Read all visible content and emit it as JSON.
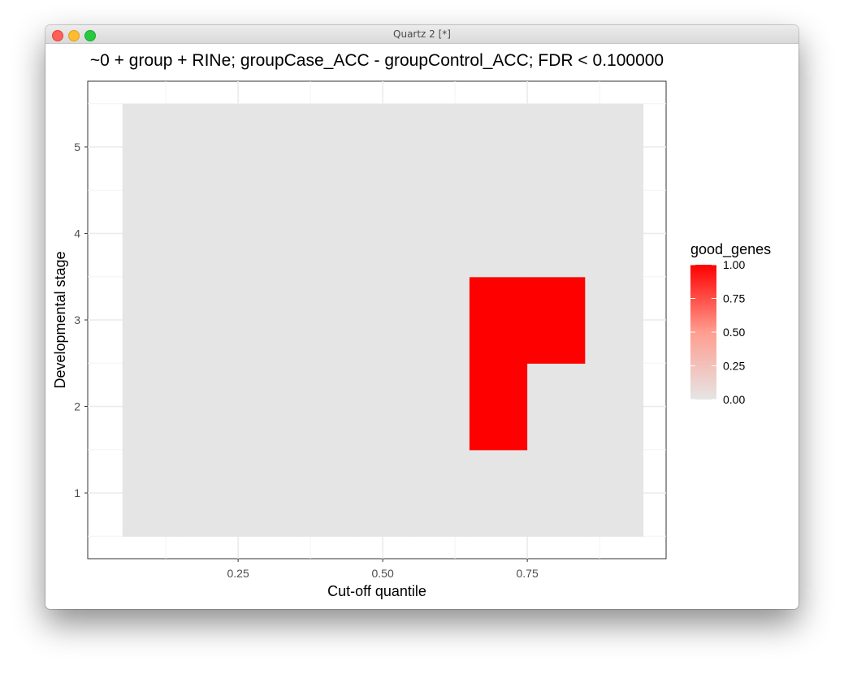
{
  "window": {
    "title": "Quartz 2 [*]"
  },
  "chart_data": {
    "type": "heatmap",
    "title": "~0 + group + RINe; groupCase_ACC - groupControl_ACC; FDR < 0.100000",
    "xlabel": "Cut-off quantile",
    "ylabel": "Developmental stage",
    "x_ticks": [
      "0.25",
      "0.50",
      "0.75"
    ],
    "x_tick_values": [
      0.25,
      0.5,
      0.75
    ],
    "y_ticks": [
      "1",
      "2",
      "3",
      "4",
      "5"
    ],
    "y_tick_values": [
      1,
      2,
      3,
      4,
      5
    ],
    "xlim": [
      0.0,
      1.0
    ],
    "ylim": [
      0.5,
      5.5
    ],
    "x": [
      0.1,
      0.2,
      0.3,
      0.4,
      0.5,
      0.6,
      0.7,
      0.8,
      0.9
    ],
    "y": [
      1,
      2,
      3,
      4,
      5
    ],
    "values": [
      [
        0,
        0,
        0,
        0,
        0,
        0,
        0,
        0,
        0
      ],
      [
        0,
        0,
        0,
        0,
        0,
        0,
        1,
        0,
        0
      ],
      [
        0,
        0,
        0,
        0,
        0,
        0,
        1,
        1,
        0
      ],
      [
        0,
        0,
        0,
        0,
        0,
        0,
        0,
        0,
        0
      ],
      [
        0,
        0,
        0,
        0,
        0,
        0,
        0,
        0,
        0
      ]
    ],
    "legend": {
      "title": "good_genes",
      "position": "right",
      "labels": [
        "1.00",
        "0.75",
        "0.50",
        "0.25",
        "0.00"
      ],
      "values": [
        1.0,
        0.75,
        0.5,
        0.25,
        0.0
      ],
      "low_color": "#e5e5e5",
      "high_color": "#ff0000"
    },
    "grid": true
  }
}
